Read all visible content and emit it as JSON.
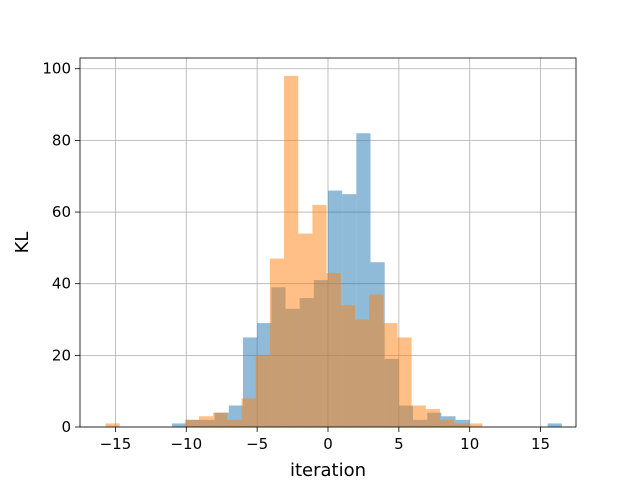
{
  "chart_data": {
    "type": "bar",
    "chart_kind": "histogram",
    "title": "",
    "xlabel": "iteration",
    "ylabel": "KL",
    "xlim": [
      -17.5,
      17.5
    ],
    "ylim": [
      0,
      103
    ],
    "x_ticks": [
      -15,
      -10,
      -5,
      0,
      5,
      10,
      15
    ],
    "x_tick_labels": [
      "−15",
      "−10",
      "−5",
      "0",
      "5",
      "10",
      "15"
    ],
    "y_ticks": [
      0,
      20,
      40,
      60,
      80,
      100
    ],
    "y_tick_labels": [
      "0",
      "20",
      "40",
      "60",
      "80",
      "100"
    ],
    "grid": true,
    "legend": "none",
    "overlap_color": "#c59362",
    "series": [
      {
        "color": "#1f77b4",
        "opacity": 0.5,
        "bins": [
          {
            "x0": -11.0,
            "x1": -10.0,
            "count": 1
          },
          {
            "x0": -10.0,
            "x1": -9.0,
            "count": 2
          },
          {
            "x0": -9.0,
            "x1": -8.0,
            "count": 2
          },
          {
            "x0": -8.0,
            "x1": -7.0,
            "count": 4
          },
          {
            "x0": -7.0,
            "x1": -6.0,
            "count": 6
          },
          {
            "x0": -6.0,
            "x1": -5.0,
            "count": 25
          },
          {
            "x0": -5.0,
            "x1": -4.0,
            "count": 29
          },
          {
            "x0": -4.0,
            "x1": -3.0,
            "count": 39
          },
          {
            "x0": -3.0,
            "x1": -2.0,
            "count": 33
          },
          {
            "x0": -2.0,
            "x1": -1.0,
            "count": 36
          },
          {
            "x0": -1.0,
            "x1": 0.0,
            "count": 41
          },
          {
            "x0": 0.0,
            "x1": 1.0,
            "count": 66
          },
          {
            "x0": 1.0,
            "x1": 2.0,
            "count": 65
          },
          {
            "x0": 2.0,
            "x1": 3.0,
            "count": 82
          },
          {
            "x0": 3.0,
            "x1": 4.0,
            "count": 46
          },
          {
            "x0": 4.0,
            "x1": 5.0,
            "count": 19
          },
          {
            "x0": 5.0,
            "x1": 6.0,
            "count": 6
          },
          {
            "x0": 6.0,
            "x1": 7.0,
            "count": 2
          },
          {
            "x0": 7.0,
            "x1": 8.0,
            "count": 4
          },
          {
            "x0": 8.0,
            "x1": 9.0,
            "count": 3
          },
          {
            "x0": 9.0,
            "x1": 10.0,
            "count": 2
          },
          {
            "x0": 15.5,
            "x1": 16.5,
            "count": 1
          }
        ]
      },
      {
        "color": "#ff7f0e",
        "opacity": 0.5,
        "bins": [
          {
            "x0": -15.7,
            "x1": -14.7,
            "count": 1
          },
          {
            "x0": -10.1,
            "x1": -9.1,
            "count": 2
          },
          {
            "x0": -9.1,
            "x1": -8.1,
            "count": 3
          },
          {
            "x0": -8.1,
            "x1": -7.1,
            "count": 4
          },
          {
            "x0": -7.1,
            "x1": -6.1,
            "count": 2
          },
          {
            "x0": -6.1,
            "x1": -5.1,
            "count": 8
          },
          {
            "x0": -5.1,
            "x1": -4.1,
            "count": 20
          },
          {
            "x0": -4.1,
            "x1": -3.1,
            "count": 47
          },
          {
            "x0": -3.1,
            "x1": -2.1,
            "count": 98
          },
          {
            "x0": -2.1,
            "x1": -1.1,
            "count": 54
          },
          {
            "x0": -1.1,
            "x1": -0.1,
            "count": 62
          },
          {
            "x0": -0.1,
            "x1": 0.9,
            "count": 43
          },
          {
            "x0": 0.9,
            "x1": 1.9,
            "count": 34
          },
          {
            "x0": 1.9,
            "x1": 2.9,
            "count": 30
          },
          {
            "x0": 2.9,
            "x1": 3.9,
            "count": 37
          },
          {
            "x0": 3.9,
            "x1": 4.9,
            "count": 29
          },
          {
            "x0": 4.9,
            "x1": 5.9,
            "count": 25
          },
          {
            "x0": 5.9,
            "x1": 6.9,
            "count": 6
          },
          {
            "x0": 6.9,
            "x1": 7.9,
            "count": 5
          },
          {
            "x0": 7.9,
            "x1": 8.9,
            "count": 2
          },
          {
            "x0": 8.9,
            "x1": 9.9,
            "count": 1
          },
          {
            "x0": 9.9,
            "x1": 10.9,
            "count": 1
          }
        ]
      }
    ]
  }
}
